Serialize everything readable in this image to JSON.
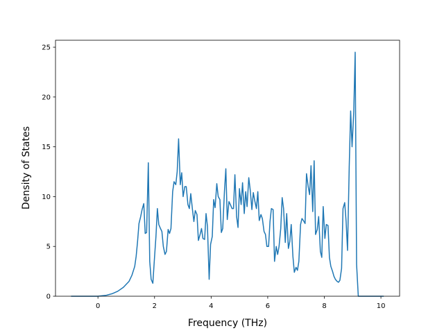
{
  "chart_data": {
    "type": "line",
    "x_label": "Frequency (THz)",
    "y_label": "Density of States",
    "xlim": [
      -1.5,
      10.66
    ],
    "ylim": [
      0,
      25.7
    ],
    "xticks": [
      0,
      2,
      4,
      6,
      8,
      10
    ],
    "yticks": [
      0,
      5,
      10,
      15,
      20,
      25
    ],
    "series": [
      {
        "color": "#1f77b4",
        "x": [
          -0.95,
          0,
          0.3,
          0.5,
          0.7,
          0.9,
          1.1,
          1.2,
          1.3,
          1.35,
          1.4,
          1.45,
          1.51,
          1.56,
          1.62,
          1.67,
          1.72,
          1.78,
          1.83,
          1.88,
          1.94,
          1.99,
          2.05,
          2.1,
          2.15,
          2.21,
          2.26,
          2.31,
          2.37,
          2.42,
          2.48,
          2.53,
          2.58,
          2.64,
          2.69,
          2.75,
          2.8,
          2.85,
          2.91,
          2.96,
          3.01,
          3.07,
          3.12,
          3.18,
          3.23,
          3.28,
          3.34,
          3.39,
          3.44,
          3.5,
          3.55,
          3.61,
          3.66,
          3.71,
          3.77,
          3.82,
          3.87,
          3.93,
          3.98,
          4.04,
          4.09,
          4.14,
          4.2,
          4.25,
          4.31,
          4.36,
          4.41,
          4.47,
          4.52,
          4.57,
          4.63,
          4.68,
          4.74,
          4.79,
          4.84,
          4.9,
          4.95,
          5.0,
          5.06,
          5.11,
          5.17,
          5.22,
          5.27,
          5.33,
          5.38,
          5.44,
          5.49,
          5.54,
          5.6,
          5.65,
          5.7,
          5.76,
          5.81,
          5.87,
          5.92,
          5.97,
          6.03,
          6.08,
          6.13,
          6.19,
          6.24,
          6.3,
          6.35,
          6.4,
          6.46,
          6.51,
          6.56,
          6.62,
          6.67,
          6.73,
          6.78,
          6.83,
          6.89,
          6.94,
          7.0,
          7.05,
          7.1,
          7.16,
          7.21,
          7.26,
          7.32,
          7.37,
          7.43,
          7.48,
          7.53,
          7.59,
          7.64,
          7.69,
          7.75,
          7.8,
          7.86,
          7.91,
          7.96,
          8.02,
          8.07,
          8.13,
          8.18,
          8.23,
          8.29,
          8.34,
          8.39,
          8.45,
          8.5,
          8.55,
          8.61,
          8.66,
          8.72,
          8.77,
          8.82,
          8.88,
          8.93,
          8.98,
          9.04,
          9.09,
          9.14,
          9.2,
          10.1
        ],
        "values": [
          0,
          0,
          0.1,
          0.25,
          0.5,
          0.9,
          1.5,
          2.1,
          3.0,
          4.0,
          5.5,
          7.3,
          8,
          8.7,
          9.3,
          6.3,
          6.4,
          13.4,
          3.5,
          1.7,
          1.3,
          3.5,
          6,
          8.8,
          7.2,
          6.8,
          6.5,
          5,
          4.2,
          4.5,
          6.7,
          6.3,
          6.8,
          10.5,
          11.5,
          11.2,
          12.5,
          15.8,
          11.2,
          12.4,
          10,
          11,
          11,
          9.2,
          8.8,
          10.3,
          8.7,
          7.5,
          8.6,
          8.2,
          5.6,
          6.2,
          6.8,
          5.8,
          5.7,
          8.3,
          7,
          1.7,
          5.2,
          6,
          9.7,
          8.9,
          11.3,
          10,
          9.7,
          6.4,
          6.8,
          10.5,
          12.8,
          7.7,
          9.5,
          9.2,
          8.8,
          8.8,
          12.2,
          8,
          6.9,
          10.8,
          9.2,
          11.4,
          8.3,
          10.5,
          9,
          11.9,
          10.7,
          8.7,
          10.4,
          9.6,
          8.8,
          10.5,
          7.6,
          8.2,
          7.8,
          6.5,
          6.2,
          5,
          5,
          7.5,
          8.8,
          8.7,
          3.5,
          5,
          4.2,
          5,
          6.8,
          9.9,
          8.8,
          5.4,
          8.3,
          4.8,
          5.5,
          7.2,
          4,
          2.4,
          2.9,
          2.6,
          3.5,
          7.2,
          7.8,
          7.6,
          7.3,
          12.3,
          11,
          10.2,
          13.1,
          8.5,
          13.6,
          6.2,
          6.7,
          8,
          4.5,
          3.9,
          9,
          5.8,
          7.2,
          7.1,
          3.9,
          3,
          2.5,
          2,
          1.7,
          1.5,
          1.4,
          1.6,
          2.8,
          8.8,
          9.4,
          7.5,
          4.6,
          13,
          18.6,
          15,
          18.5,
          24.5,
          3.2,
          0,
          0
        ]
      }
    ]
  }
}
